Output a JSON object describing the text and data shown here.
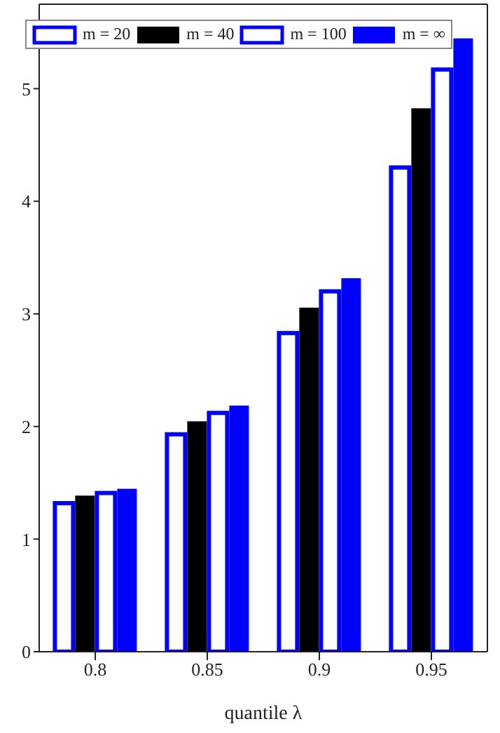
{
  "chart_data": {
    "type": "bar",
    "xlabel": "quantile λ",
    "categories": [
      "0.8",
      "0.85",
      "0.9",
      "0.95"
    ],
    "series": [
      {
        "name": "m = 20",
        "color": "#0000ff",
        "values": [
          1.32,
          1.93,
          2.83,
          4.3
        ]
      },
      {
        "name": "m = 40",
        "color": "#000000",
        "values": [
          1.38,
          2.04,
          3.05,
          4.82
        ]
      },
      {
        "name": "m = 100",
        "color": "#0000ff",
        "values": [
          1.41,
          2.12,
          3.2,
          5.17
        ]
      },
      {
        "name": "m = ∞",
        "color": "#0000ff",
        "values": [
          1.44,
          2.18,
          3.31,
          5.44
        ]
      }
    ],
    "ylim": [
      0,
      5.75
    ],
    "yticks": [
      0,
      1,
      2,
      3,
      4,
      5
    ],
    "legend": "top",
    "grid": false
  }
}
